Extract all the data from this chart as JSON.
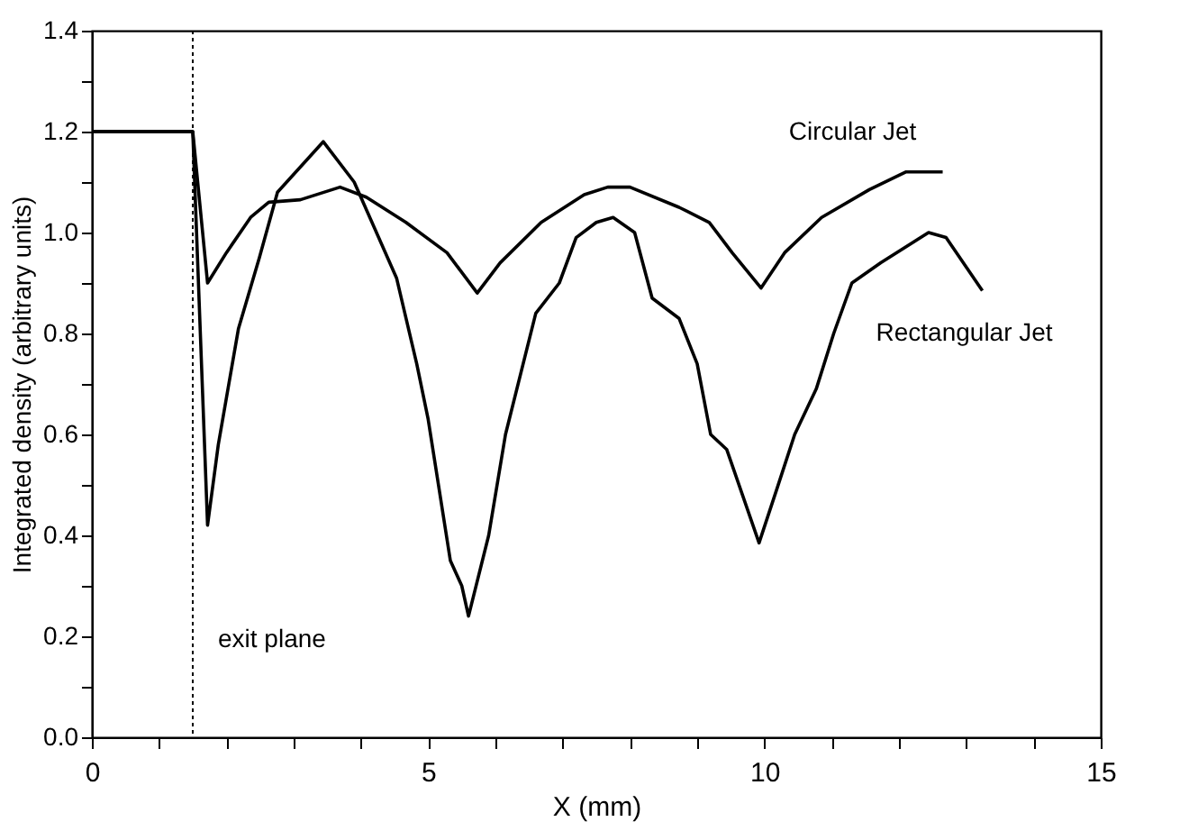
{
  "chart_data": {
    "type": "line",
    "xlabel": "X (mm)",
    "ylabel": "Integrated density (arbitrary units)",
    "xlim": [
      0,
      15
    ],
    "ylim": [
      0,
      1.4
    ],
    "xticks": [
      0,
      {
        "value": 1,
        "label": null
      },
      {
        "value": 2,
        "label": null
      },
      {
        "value": 3,
        "label": null
      },
      {
        "value": 4,
        "label": null
      },
      5,
      {
        "value": 6,
        "label": null
      },
      {
        "value": 7,
        "label": null
      },
      {
        "value": 8,
        "label": null
      },
      {
        "value": 9,
        "label": null
      },
      10,
      {
        "value": 11,
        "label": null
      },
      {
        "value": 12,
        "label": null
      },
      {
        "value": 13,
        "label": null
      },
      {
        "value": 14,
        "label": null
      },
      15
    ],
    "yticks": [
      {
        "value": 0,
        "label": "0.0"
      },
      {
        "value": 0.1,
        "label": null
      },
      {
        "value": 0.2,
        "label": "0.2"
      },
      {
        "value": 0.3,
        "label": null
      },
      {
        "value": 0.4,
        "label": "0.4"
      },
      {
        "value": 0.5,
        "label": null
      },
      {
        "value": 0.6,
        "label": "0.6"
      },
      {
        "value": 0.7,
        "label": null
      },
      {
        "value": 0.8,
        "label": "0.8"
      },
      {
        "value": 0.9,
        "label": null
      },
      {
        "value": 1.0,
        "label": "1.0"
      },
      {
        "value": 1.1,
        "label": null
      },
      {
        "value": 1.2,
        "label": "1.2"
      },
      {
        "value": 1.3,
        "label": null
      },
      {
        "value": 1.4,
        "label": "1.4"
      }
    ],
    "grid": false,
    "marker": "none",
    "line_style": "solid",
    "ref_lines": [
      {
        "axis": "x",
        "value": 1.5,
        "label": "exit plane",
        "color": "#000000",
        "line_style": "dotted"
      }
    ],
    "series": [
      {
        "name": "Circular Jet",
        "color": "#000000",
        "x": [
          0,
          1.5,
          1.72,
          2.0,
          2.36,
          2.63,
          3.1,
          3.69,
          4.08,
          4.67,
          5.28,
          5.73,
          6.07,
          6.68,
          7.32,
          7.67,
          8.0,
          8.73,
          9.18,
          9.52,
          9.95,
          10.3,
          10.85,
          11.56,
          12.1,
          12.65
        ],
        "values": [
          1.2,
          1.2,
          0.9,
          0.96,
          1.03,
          1.06,
          1.065,
          1.09,
          1.07,
          1.02,
          0.96,
          0.88,
          0.94,
          1.02,
          1.075,
          1.09,
          1.09,
          1.05,
          1.02,
          0.96,
          0.89,
          0.96,
          1.03,
          1.085,
          1.12,
          1.12
        ]
      },
      {
        "name": "Rectangular Jet",
        "color": "#000000",
        "x": [
          0,
          1.5,
          1.72,
          1.88,
          2.18,
          2.49,
          2.76,
          3.44,
          3.9,
          4.53,
          4.83,
          5.0,
          5.33,
          5.5,
          5.6,
          5.9,
          6.15,
          6.6,
          6.95,
          7.2,
          7.5,
          7.75,
          8.07,
          8.33,
          8.73,
          9.0,
          9.2,
          9.44,
          9.92,
          10.18,
          10.45,
          10.77,
          11.03,
          11.3,
          11.73,
          12.44,
          12.7,
          13.24
        ],
        "values": [
          1.2,
          1.2,
          0.42,
          0.58,
          0.81,
          0.95,
          1.08,
          1.18,
          1.1,
          0.91,
          0.74,
          0.63,
          0.35,
          0.3,
          0.24,
          0.4,
          0.6,
          0.84,
          0.9,
          0.99,
          1.02,
          1.03,
          1.0,
          0.87,
          0.83,
          0.74,
          0.6,
          0.57,
          0.385,
          0.49,
          0.6,
          0.69,
          0.8,
          0.9,
          0.94,
          1.0,
          0.99,
          0.885
        ]
      }
    ]
  }
}
